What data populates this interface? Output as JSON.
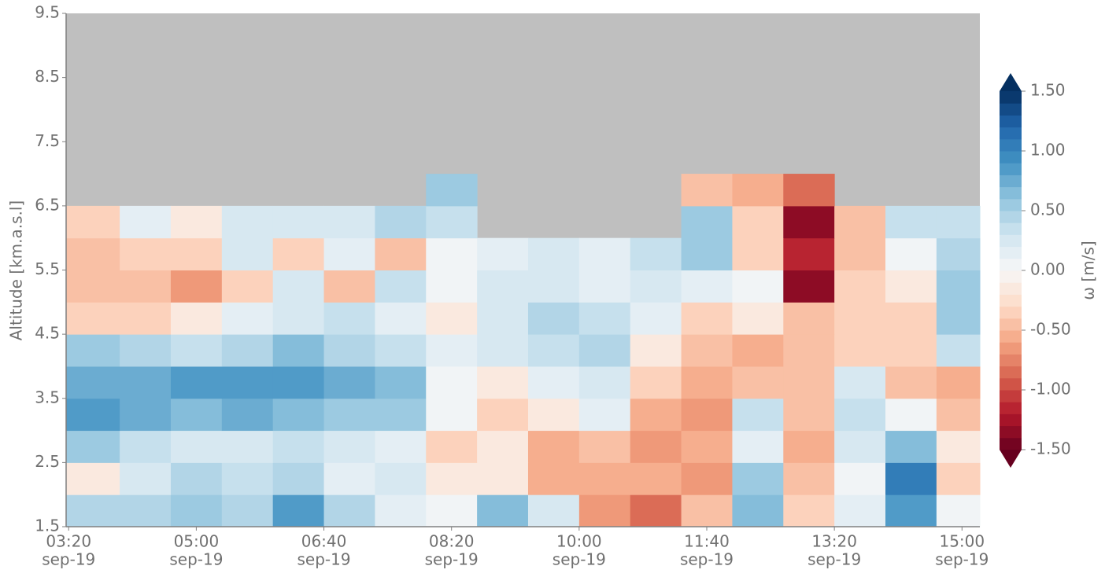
{
  "chart_data": {
    "type": "contour",
    "xlabel_lines": null,
    "ylabel": "Altitude [km.a.s.l]",
    "colorbar_label": "ω [m/s]",
    "colormap": "RdBu",
    "clim": [
      -1.5,
      1.5
    ],
    "cticks": [
      {
        "value": -1.5,
        "label": "-1.50"
      },
      {
        "value": -1,
        "label": "-1.00"
      },
      {
        "value": -0.5,
        "label": "-0.50"
      },
      {
        "value": 0,
        "label": "0.00"
      },
      {
        "value": 0.5,
        "label": "0.50"
      },
      {
        "value": 1,
        "label": "1.00"
      },
      {
        "value": 1.5,
        "label": "1.50"
      }
    ],
    "xlim": [
      "03:18",
      "15:14"
    ],
    "xticks": [
      {
        "value": "03:20",
        "label": [
          "03:20",
          "sep-19"
        ]
      },
      {
        "value": "05:00",
        "label": [
          "05:00",
          "sep-19"
        ]
      },
      {
        "value": "06:40",
        "label": [
          "06:40",
          "sep-19"
        ]
      },
      {
        "value": "08:20",
        "label": [
          "08:20",
          "sep-19"
        ]
      },
      {
        "value": "10:00",
        "label": [
          "10:00",
          "sep-19"
        ]
      },
      {
        "value": "11:40",
        "label": [
          "11:40",
          "sep-19"
        ]
      },
      {
        "value": "13:20",
        "label": [
          "13:20",
          "sep-19"
        ]
      },
      {
        "value": "15:00",
        "label": [
          "15:00",
          "sep-19"
        ]
      }
    ],
    "ylim": [
      1.5,
      9.5
    ],
    "yticks": [
      1.5,
      2.5,
      3.5,
      4.5,
      5.5,
      6.5,
      7.5,
      8.5,
      9.5
    ],
    "x": [
      "03:40",
      "04:20",
      "05:00",
      "05:40",
      "06:20",
      "07:00",
      "07:40",
      "08:20",
      "09:00",
      "09:40",
      "10:20",
      "11:00",
      "11:40",
      "12:20",
      "13:00",
      "13:40",
      "14:20",
      "15:00"
    ],
    "y": [
      1.75,
      2.25,
      2.75,
      3.25,
      3.75,
      4.25,
      4.75,
      5.25,
      5.75,
      6.25,
      6.75
    ],
    "z": [
      [
        0.4,
        0.4,
        0.5,
        0.4,
        0.8,
        0.4,
        0.1,
        0.0,
        0.6,
        0.2,
        -0.7,
        -0.8,
        -0.5,
        0.6,
        -0.4,
        0.1,
        0.8,
        0.0
      ],
      [
        -0.1,
        0.2,
        0.4,
        0.3,
        0.4,
        0.1,
        0.2,
        -0.2,
        -0.2,
        -0.6,
        -0.6,
        -0.6,
        -0.7,
        0.5,
        -0.5,
        0.0,
        1.0,
        -0.3
      ],
      [
        0.5,
        0.3,
        0.2,
        0.2,
        0.3,
        0.2,
        0.1,
        -0.3,
        -0.1,
        -0.6,
        -0.5,
        -0.7,
        -0.6,
        0.1,
        -0.6,
        0.2,
        0.6,
        -0.2
      ],
      [
        0.8,
        0.7,
        0.6,
        0.7,
        0.6,
        0.5,
        0.5,
        0.0,
        -0.3,
        -0.2,
        0.1,
        -0.6,
        -0.7,
        0.3,
        -0.5,
        0.3,
        0.0,
        -0.5
      ],
      [
        0.7,
        0.7,
        0.8,
        0.9,
        0.8,
        0.7,
        0.6,
        0.0,
        -0.2,
        0.1,
        0.2,
        -0.3,
        -0.6,
        -0.5,
        -0.5,
        0.2,
        -0.5,
        -0.6
      ],
      [
        0.5,
        0.4,
        0.3,
        0.4,
        0.6,
        0.4,
        0.3,
        0.1,
        0.2,
        0.3,
        0.4,
        -0.1,
        -0.5,
        -0.6,
        -0.5,
        -0.3,
        -0.4,
        0.3
      ],
      [
        -0.4,
        -0.4,
        -0.2,
        0.1,
        0.2,
        0.3,
        0.1,
        -0.1,
        0.2,
        0.4,
        0.3,
        0.1,
        -0.3,
        -0.2,
        -0.5,
        -0.4,
        -0.3,
        0.5
      ],
      [
        -0.5,
        -0.5,
        -0.7,
        -0.3,
        0.2,
        -0.5,
        0.3,
        0.0,
        0.2,
        0.2,
        0.1,
        0.2,
        0.1,
        0.0,
        -1.3,
        -0.3,
        -0.1,
        0.5
      ],
      [
        -0.5,
        -0.4,
        -0.3,
        0.2,
        -0.4,
        0.1,
        -0.5,
        0.0,
        0.1,
        0.2,
        0.1,
        0.3,
        0.5,
        -0.3,
        -1.2,
        -0.5,
        0.0,
        0.4
      ],
      [
        -0.3,
        0.1,
        -0.2,
        0.2,
        0.2,
        0.2,
        0.4,
        0.3,
        null,
        null,
        null,
        null,
        0.5,
        -0.4,
        -1.3,
        -0.5,
        0.3,
        0.3
      ],
      [
        null,
        null,
        null,
        null,
        null,
        null,
        null,
        0.5,
        null,
        null,
        null,
        null,
        -0.5,
        -0.6,
        -0.8,
        null,
        null,
        null
      ]
    ],
    "missing_color": "#bfbfbf"
  }
}
